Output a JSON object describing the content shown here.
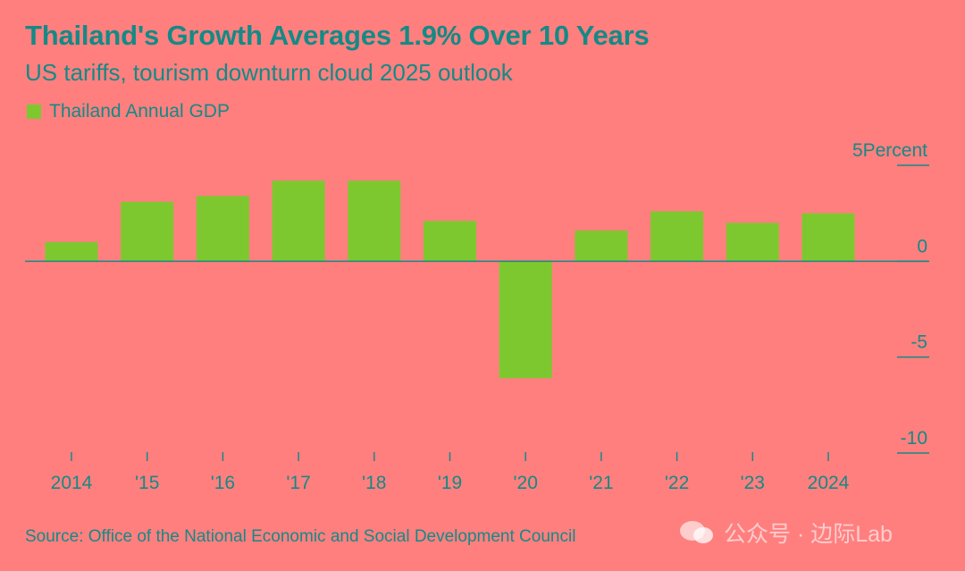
{
  "title": "Thailand's Growth Averages 1.9% Over 10 Years",
  "subtitle": "US tariffs, tourism downturn cloud 2025 outlook",
  "legend": {
    "label": "Thailand Annual GDP",
    "color": "#7ec82f"
  },
  "source": "Source: Office of the National Economic and Social Development Council",
  "watermark": "公众号 · 边际Lab",
  "colors": {
    "bar": "#7ec82f",
    "text": "#148a86",
    "background": "#ff7f7f",
    "axis": "#148a86"
  },
  "chart_data": {
    "type": "bar",
    "title": "Thailand's Growth Averages 1.9% Over 10 Years",
    "categories": [
      "2014",
      "'15",
      "'16",
      "'17",
      "'18",
      "'19",
      "'20",
      "'21",
      "'22",
      "'23",
      "2024"
    ],
    "series": [
      {
        "name": "Thailand Annual GDP",
        "values": [
          1.0,
          3.1,
          3.4,
          4.2,
          4.2,
          2.1,
          -6.1,
          1.6,
          2.6,
          2.0,
          2.5
        ]
      }
    ],
    "yunit": "Percent",
    "ylim": [
      -10,
      5
    ],
    "yticks": [
      5,
      0,
      -5,
      -10
    ],
    "ytick_labels": [
      "5",
      "0",
      "-5",
      "-10"
    ],
    "axis_position": "right",
    "grid": false
  }
}
